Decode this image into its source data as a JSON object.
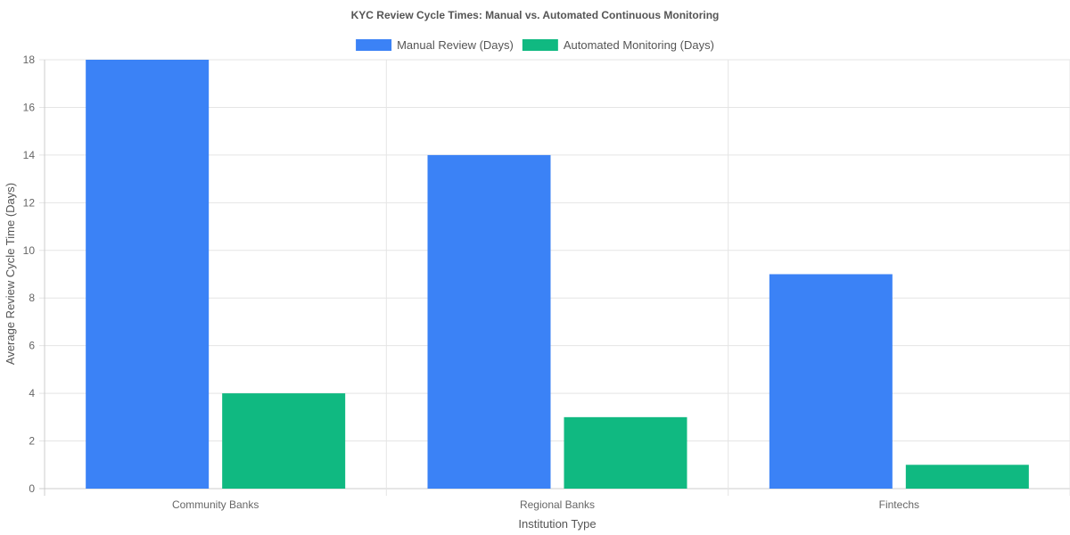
{
  "chart_data": {
    "type": "bar",
    "title": "KYC Review Cycle Times: Manual vs. Automated Continuous Monitoring",
    "xlabel": "Institution Type",
    "ylabel": "Average Review Cycle Time (Days)",
    "categories": [
      "Community Banks",
      "Regional Banks",
      "Fintechs"
    ],
    "series": [
      {
        "name": "Manual Review (Days)",
        "values": [
          18,
          14,
          9
        ],
        "color": "#3b82f6"
      },
      {
        "name": "Automated Monitoring (Days)",
        "values": [
          4,
          3,
          1
        ],
        "color": "#10b981"
      }
    ],
    "ylim": [
      0,
      18
    ],
    "yticks": [
      0,
      2,
      4,
      6,
      8,
      10,
      12,
      14,
      16,
      18
    ],
    "grid": true,
    "legend_position": "top"
  }
}
